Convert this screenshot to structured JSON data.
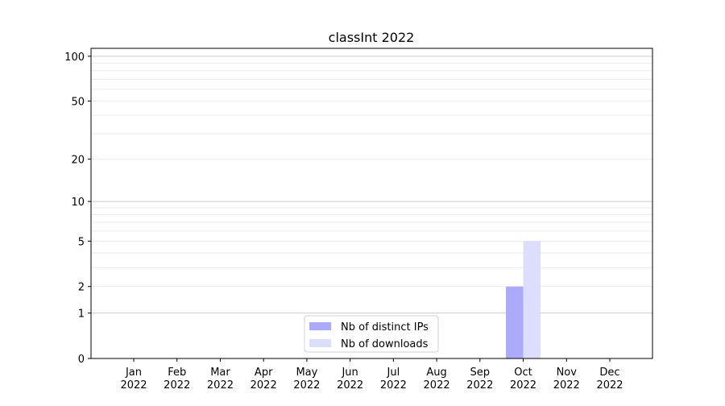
{
  "chart_data": {
    "type": "bar",
    "title": "classInt 2022",
    "xlabel": "",
    "ylabel": "",
    "y_scale": "log(1+y)",
    "ylim": [
      0,
      113
    ],
    "y_ticks": [
      0,
      1,
      2,
      5,
      10,
      20,
      50,
      100
    ],
    "grid": "horizontal major and minor",
    "categories": [
      "Jan\n2022",
      "Feb\n2022",
      "Mar\n2022",
      "Apr\n2022",
      "May\n2022",
      "Jun\n2022",
      "Jul\n2022",
      "Aug\n2022",
      "Sep\n2022",
      "Oct\n2022",
      "Nov\n2022",
      "Dec\n2022"
    ],
    "series": [
      {
        "name": "Nb of distinct IPs",
        "color": "#aaaaff",
        "values": [
          0,
          0,
          0,
          0,
          0,
          0,
          0,
          0,
          0,
          2,
          0,
          0
        ]
      },
      {
        "name": "Nb of downloads",
        "color": "#ddddff",
        "values": [
          0,
          0,
          0,
          0,
          0,
          0,
          0,
          0,
          0,
          5,
          0,
          0
        ]
      }
    ],
    "legend_position": "bottom-center"
  }
}
